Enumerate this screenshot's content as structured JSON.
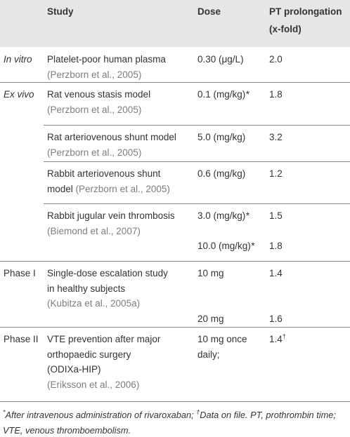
{
  "table": {
    "header": {
      "study": "Study",
      "dose": "Dose",
      "pt": [
        "PT prolongation",
        "(x-fold)"
      ]
    },
    "groups": [
      {
        "label": "In vitro",
        "entries": [
          {
            "study": [
              "Platelet-poor human plasma"
            ],
            "citation": "(Perzborn et al., 2005)",
            "doses": [
              {
                "dose": "0.30 (μg/L)",
                "pt": "2.0"
              }
            ]
          }
        ]
      },
      {
        "label": "Ex vivo",
        "entries": [
          {
            "study": [
              "Rat venous stasis model"
            ],
            "citation": "(Perzborn et al., 2005)",
            "doses": [
              {
                "dose": "0.1 (mg/kg)",
                "note": "*",
                "pt": "1.8"
              }
            ]
          },
          {
            "study": [
              "Rat arteriovenous shunt model"
            ],
            "citation": "(Perzborn et al., 2005)",
            "doses": [
              {
                "dose": "5.0 (mg/kg)",
                "pt": "3.2"
              }
            ]
          },
          {
            "study": [
              "Rabbit arteriovenous shunt",
              "model"
            ],
            "citation": "(Perzborn et al., 2005)",
            "doses": [
              {
                "dose": "0.6 (mg/kg)",
                "pt": "1.2"
              }
            ]
          },
          {
            "study": [
              "Rabbit jugular vein thrombosis"
            ],
            "citation": "(Biemond et al., 2007)",
            "doses": [
              {
                "dose": "3.0 (mg/kg)",
                "note": "*",
                "pt": "1.5"
              },
              {
                "dose": "10.0 (mg/kg)",
                "note": "*",
                "pt": "1.8"
              }
            ]
          }
        ]
      },
      {
        "label": "Phase I",
        "entries": [
          {
            "study": [
              "Single-dose escalation study",
              "in healthy subjects"
            ],
            "citation": "(Kubitza et al., 2005a)",
            "doses": [
              {
                "dose": "10 mg",
                "pt": "1.4"
              },
              {
                "dose": "20 mg",
                "pt": "1.6"
              }
            ]
          }
        ]
      },
      {
        "label": "Phase II",
        "entries": [
          {
            "study": [
              "VTE prevention after major",
              "orthopaedic surgery",
              "(ODIXa-HIP)"
            ],
            "citation": "(Eriksson et al., 2006)",
            "doses": [
              {
                "dose": [
                  "10 mg once",
                  "daily;"
                ],
                "pt": "1.4",
                "pt_note": "†"
              }
            ]
          }
        ]
      }
    ]
  },
  "footnote": {
    "mark1": "*",
    "text1": "After intravenous administration of rivaroxaban; ",
    "mark2": "†",
    "text2": "Data on file. PT, prothrombin time; VTE, venous thromboembolism."
  }
}
